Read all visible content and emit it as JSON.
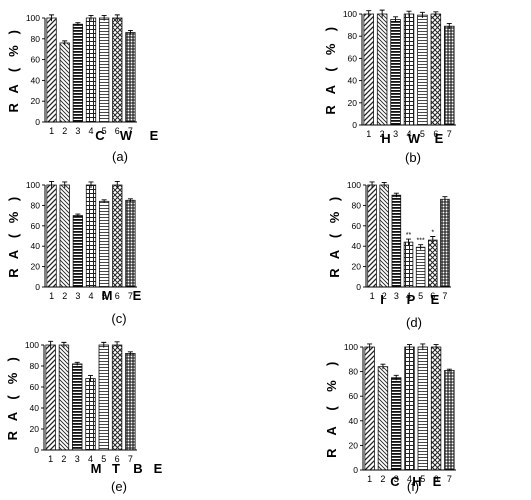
{
  "figure": {
    "ylabel_letters": [
      "R",
      "A",
      "(",
      "%",
      ")"
    ],
    "panel_labels": [
      "(a)",
      "(b)",
      "(c)",
      "(d)",
      "(e)",
      "(f)"
    ]
  },
  "chart_data": [
    {
      "type": "bar",
      "panel": "(a)",
      "categories": [
        "1",
        "2",
        "3",
        "4",
        "5",
        "6",
        "7"
      ],
      "values": [
        100,
        76,
        94,
        100,
        100,
        100,
        86
      ],
      "errors": [
        3,
        2,
        1.5,
        2.5,
        2.5,
        3,
        2
      ],
      "annotations": [
        "",
        "",
        "",
        "",
        "",
        "",
        ""
      ],
      "ylim": [
        0,
        100
      ],
      "yticks": [
        "0",
        "20",
        "40",
        "60",
        "80",
        "100"
      ],
      "xlabel_letters": [
        "C",
        "W",
        "E"
      ],
      "ylabel_letters": [
        "R",
        "A",
        "(",
        "%",
        ")"
      ],
      "grid": false
    },
    {
      "type": "bar",
      "panel": "(b)",
      "categories": [
        "1",
        "2",
        "3",
        "4",
        "5",
        "6",
        "7"
      ],
      "values": [
        100,
        100,
        95,
        100,
        99,
        100,
        89
      ],
      "errors": [
        3,
        3.5,
        2.5,
        2.5,
        2.5,
        2,
        2.5
      ],
      "annotations": [
        "",
        "",
        "",
        "",
        "",
        "",
        ""
      ],
      "ylim": [
        0,
        100
      ],
      "yticks": [
        "0",
        "20",
        "40",
        "60",
        "80",
        "100"
      ],
      "xlabel_letters": [
        "H",
        "W",
        "E"
      ],
      "ylabel_letters": [
        "R",
        "A",
        "(",
        "%",
        ")"
      ],
      "grid": false
    },
    {
      "type": "bar",
      "panel": "(c)",
      "categories": [
        "1",
        "2",
        "3",
        "4",
        "5",
        "6",
        "7"
      ],
      "values": [
        100,
        100,
        70,
        100,
        84,
        100,
        85
      ],
      "errors": [
        3.5,
        3,
        1.5,
        3,
        1.5,
        3.5,
        1.5
      ],
      "annotations": [
        "",
        "",
        "",
        "",
        "",
        "",
        ""
      ],
      "ylim": [
        0,
        100
      ],
      "yticks": [
        "0",
        "20",
        "40",
        "60",
        "80",
        "100"
      ],
      "xlabel_letters": [
        "M",
        "E"
      ],
      "ylabel_letters": [
        "R",
        "A",
        "(",
        "%",
        ")"
      ],
      "grid": false
    },
    {
      "type": "bar",
      "panel": "(d)",
      "categories": [
        "1",
        "2",
        "3",
        "4",
        "5",
        "6",
        "7"
      ],
      "values": [
        100,
        100,
        90,
        44,
        39,
        46,
        86
      ],
      "errors": [
        3,
        2.5,
        2,
        3,
        2.5,
        3.5,
        2.5
      ],
      "annotations": [
        "",
        "",
        "",
        "**",
        "***",
        "*",
        ""
      ],
      "ylim": [
        0,
        100
      ],
      "yticks": [
        "0",
        "20",
        "40",
        "60",
        "80",
        "100"
      ],
      "xlabel_letters": [
        "I",
        "P",
        "E"
      ],
      "ylabel_letters": [
        "R",
        "A",
        "(",
        "%",
        ")"
      ],
      "grid": false
    },
    {
      "type": "bar",
      "panel": "(e)",
      "categories": [
        "1",
        "2",
        "3",
        "4",
        "5",
        "6",
        "7"
      ],
      "values": [
        100,
        100,
        82,
        68,
        100,
        100,
        92
      ],
      "errors": [
        3.5,
        2.5,
        1.5,
        3,
        2.5,
        3,
        1.5
      ],
      "annotations": [
        "",
        "",
        "",
        "",
        "",
        "",
        ""
      ],
      "ylim": [
        0,
        100
      ],
      "yticks": [
        "0",
        "20",
        "40",
        "60",
        "80",
        "100"
      ],
      "xlabel_letters": [
        "M",
        "T",
        "B",
        "E"
      ],
      "ylabel_letters": [
        "R",
        "A",
        "(",
        "%",
        ")"
      ],
      "grid": false
    },
    {
      "type": "bar",
      "panel": "(f)",
      "categories": [
        "1",
        "2",
        "3",
        "4",
        "5",
        "6",
        "7"
      ],
      "values": [
        100,
        84,
        75,
        100,
        100,
        100,
        81
      ],
      "errors": [
        2.5,
        2,
        2,
        2,
        2.5,
        2,
        1
      ],
      "annotations": [
        "",
        "",
        "",
        "",
        "",
        "",
        ""
      ],
      "ylim": [
        0,
        100
      ],
      "yticks": [
        "0",
        "20",
        "40",
        "60",
        "80",
        "100"
      ],
      "xlabel_letters": [
        "C",
        "H",
        "E"
      ],
      "ylabel_letters": [
        "R",
        "A",
        "(",
        "%",
        ")"
      ],
      "grid": false
    }
  ]
}
